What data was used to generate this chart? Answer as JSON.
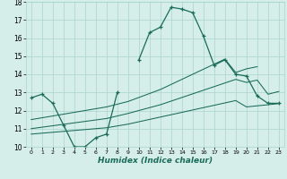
{
  "title": "",
  "xlabel": "Humidex (Indice chaleur)",
  "x_values": [
    0,
    1,
    2,
    3,
    4,
    5,
    6,
    7,
    8,
    9,
    10,
    11,
    12,
    13,
    14,
    15,
    16,
    17,
    18,
    19,
    20,
    21,
    22,
    23
  ],
  "humidex_main": [
    12.7,
    12.9,
    12.4,
    11.2,
    10.0,
    10.0,
    10.5,
    10.7,
    13.0,
    null,
    14.8,
    16.3,
    16.6,
    17.7,
    17.6,
    17.4,
    16.1,
    14.5,
    14.8,
    14.0,
    13.9,
    12.8,
    12.4,
    12.4
  ],
  "line_bottom": [
    10.7,
    10.75,
    10.8,
    10.85,
    10.9,
    10.95,
    11.0,
    11.05,
    11.15,
    11.25,
    11.38,
    11.51,
    11.64,
    11.77,
    11.9,
    12.03,
    12.16,
    12.29,
    12.42,
    12.55,
    12.2,
    12.26,
    12.32,
    12.38
  ],
  "line_mid": [
    11.0,
    11.08,
    11.16,
    11.24,
    11.32,
    11.4,
    11.48,
    11.56,
    11.7,
    11.84,
    12.0,
    12.16,
    12.32,
    12.52,
    12.72,
    12.92,
    13.12,
    13.32,
    13.52,
    13.72,
    13.55,
    13.68,
    12.9,
    13.05
  ],
  "line_top": [
    11.5,
    11.6,
    11.7,
    11.8,
    11.9,
    12.0,
    12.1,
    12.2,
    12.35,
    12.5,
    12.72,
    12.94,
    13.16,
    13.44,
    13.72,
    14.0,
    14.28,
    14.56,
    14.84,
    14.1,
    14.3,
    14.42,
    null,
    null
  ],
  "ylim": [
    10,
    18
  ],
  "xlim": [
    -0.5,
    23.5
  ],
  "yticks": [
    10,
    11,
    12,
    13,
    14,
    15,
    16,
    17,
    18
  ],
  "xticks": [
    0,
    1,
    2,
    3,
    4,
    5,
    6,
    7,
    8,
    9,
    10,
    11,
    12,
    13,
    14,
    15,
    16,
    17,
    18,
    19,
    20,
    21,
    22,
    23
  ],
  "line_color": "#1a6b5a",
  "bg_color": "#d5eeea",
  "grid_color": "#aad4cc"
}
